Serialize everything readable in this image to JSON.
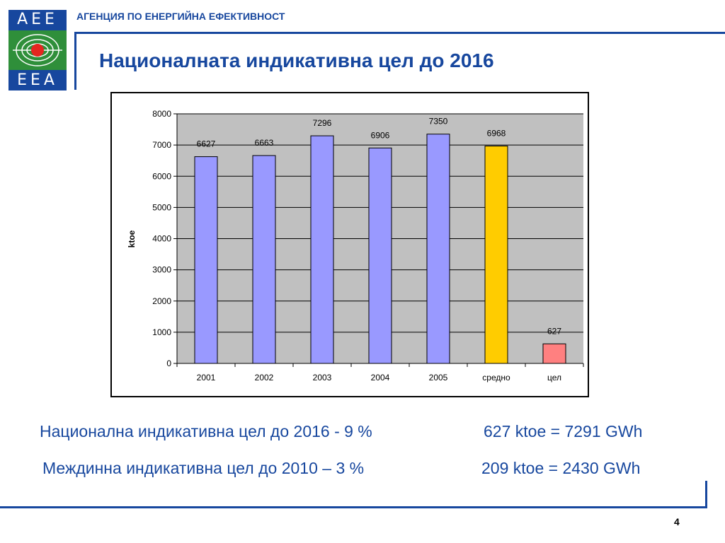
{
  "header": {
    "logo_top": "AEE",
    "logo_bottom": "EEA",
    "agency": "АГЕНЦИЯ ПО ЕНЕРГИЙНА ЕФЕКТИВНОСТ",
    "title": "Националната индикативна цел до 2016"
  },
  "chart_data": {
    "type": "bar",
    "categories": [
      "2001",
      "2002",
      "2003",
      "2004",
      "2005",
      "средно",
      "цел"
    ],
    "values": [
      6627,
      6663,
      7296,
      6906,
      7350,
      6968,
      627
    ],
    "data_labels": [
      "6627",
      "6663",
      "7296",
      "6906",
      "7350",
      "6968",
      "627"
    ],
    "colors": [
      "#9999ff",
      "#9999ff",
      "#9999ff",
      "#9999ff",
      "#9999ff",
      "#ffcc00",
      "#ff8080"
    ],
    "ylabel": "ktoe",
    "xlabel": "",
    "ylim": [
      0,
      8000
    ],
    "yticks": [
      0,
      1000,
      2000,
      3000,
      4000,
      5000,
      6000,
      7000,
      8000
    ],
    "grid": true,
    "plot_background": "#c0c0c0"
  },
  "info": {
    "line1_left": "Национална индикативна цел до 2016 - 9 %",
    "line1_right": "627 ktoe = 7291 GWh",
    "line2_left": "Междинна индикативна цел до 2010 – 3 %",
    "line2_right": "209 ktoe = 2430 GWh"
  },
  "footer": {
    "page_number": "4"
  }
}
